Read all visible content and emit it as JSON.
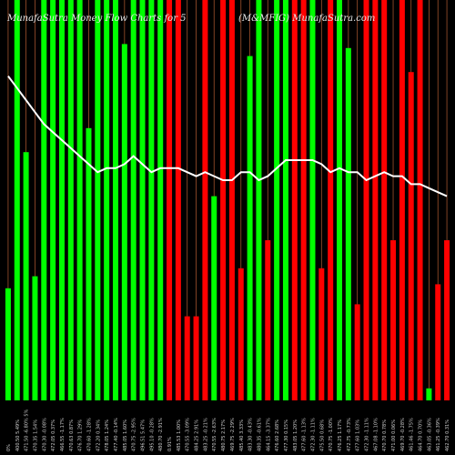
{
  "chart_data": {
    "type": "bar",
    "title_left": "MunafaSutra  Money Flow  Charts for 5",
    "title_right": "(M&MFIG) MunafaSutra.com",
    "colors": {
      "background": "#000000",
      "up": "#00ff00",
      "down": "#ff0000",
      "line": "#ffffff",
      "gridline": "#a0522d"
    },
    "grid": true,
    "bar_values": [
      28,
      100,
      62,
      31,
      100,
      100,
      100,
      100,
      100,
      68,
      100,
      100,
      100,
      89,
      100,
      100,
      100,
      100,
      100,
      100,
      21,
      21,
      100,
      51,
      100,
      100,
      33,
      86,
      100,
      40,
      100,
      100,
      100,
      100,
      100,
      33,
      100,
      100,
      88,
      24,
      100,
      100,
      100,
      40,
      100,
      82,
      100,
      3,
      29,
      40
    ],
    "bar_colors": [
      "g",
      "g",
      "g",
      "g",
      "g",
      "g",
      "g",
      "g",
      "g",
      "g",
      "g",
      "g",
      "g",
      "g",
      "g",
      "g",
      "g",
      "g",
      "r",
      "r",
      "r",
      "r",
      "r",
      "g",
      "r",
      "r",
      "r",
      "g",
      "g",
      "r",
      "g",
      "g",
      "r",
      "r",
      "g",
      "r",
      "r",
      "g",
      "g",
      "r",
      "r",
      "r",
      "r",
      "r",
      "r",
      "r",
      "r",
      "g",
      "r",
      "r"
    ],
    "line_values": [
      81,
      78,
      75,
      72,
      69,
      67,
      65,
      63,
      61,
      59,
      57,
      58,
      58,
      59,
      61,
      59,
      57,
      58,
      58,
      58,
      57,
      56,
      57,
      56,
      55,
      55,
      57,
      57,
      55,
      56,
      58,
      60,
      60,
      60,
      60,
      59,
      57,
      58,
      57,
      57,
      55,
      56,
      57,
      56,
      56,
      54,
      54,
      53,
      52,
      51
    ],
    "line_ylim": [
      0,
      100
    ],
    "bar_ylim": [
      0,
      100
    ],
    "x_labels": [
      "0%",
      "400.50 5.49%",
      "471.50 -6.80% 5%",
      "470.35 1.54%",
      "470.30 -0.08%",
      "472.05 0.37%",
      "466.55 -1.17%",
      "470.63 0.87%",
      "476.70 1.29%",
      "470.60 -1.28%",
      "472.20 0.34%",
      "478.05 1.24%",
      "477.40 -0.14%",
      "485.05 1.60%",
      "470.75 -2.95%",
      "496.51 5.47%",
      "495.10 -0.28%",
      "480.70 -2.91%",
      "0.91%",
      "485.53 1.00%",
      "470.55 -3.09%",
      "484.25 2.91%",
      "483.25 -0.21%",
      "470.55 -2.63%",
      "480.75 2.17%",
      "469.75 -2.29%",
      "485.40 3.33%",
      "483.30 -0.43%",
      "480.35 -0.61%",
      "464.15 -3.37%",
      "476.60 2.68%",
      "477.30 0.15%",
      "483.05 1.20%",
      "477.60 -1.13%",
      "472.30 -1.11%",
      "475.50 0.68%",
      "470.75 -1.00%",
      "476.25 1.17%",
      "472.75 -0.73%",
      "477.60 1.03%",
      "472.30 -1.11%",
      "467.08 -1.10%",
      "470.70 0.78%",
      "471.00 0.06%",
      "469.70 -0.28%",
      "461.46 -1.75%",
      "464.70 0.70%",
      "463.05 -0.36%",
      "461.25 -0.39%",
      "462.70 0.31%"
    ]
  }
}
